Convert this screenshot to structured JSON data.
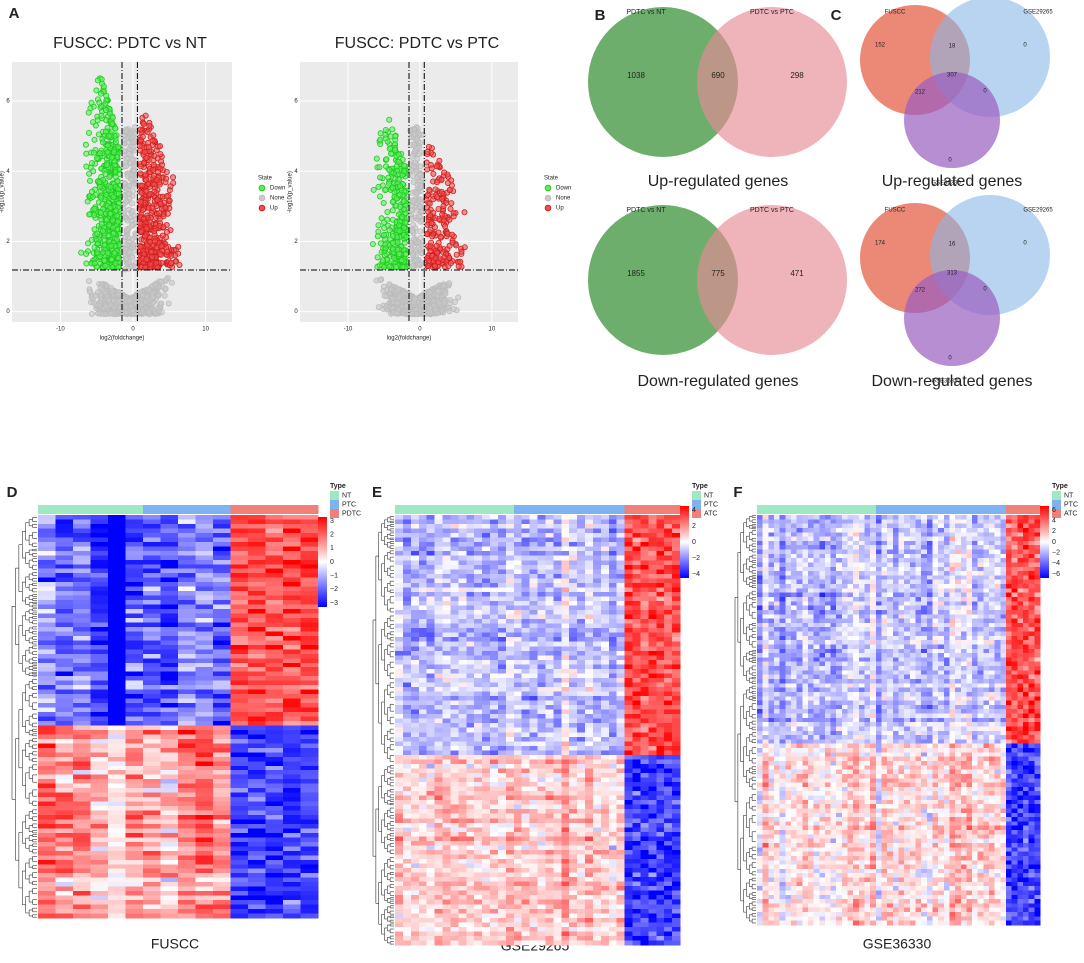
{
  "panels": {
    "A": {
      "letter": "A",
      "plots": [
        {
          "title": "FUSCC: PDTC vs NT",
          "x_label": "log2(foldchange)",
          "y_label": "-log10(p_value)",
          "x_ticks": [
            "-10",
            "0",
            "10"
          ],
          "y_ticks": [
            "0",
            "2",
            "4",
            "6"
          ],
          "legend_title": "State",
          "legend": [
            "Down",
            "None",
            "Up"
          ]
        },
        {
          "title": "FUSCC: PDTC vs PTC",
          "x_label": "log2(foldchange)",
          "y_label": "-log10(p_value)",
          "x_ticks": [
            "-10",
            "0",
            "10"
          ],
          "y_ticks": [
            "0",
            "2",
            "4",
            "6"
          ],
          "legend_title": "State",
          "legend": [
            "Down",
            "None",
            "Up"
          ]
        }
      ]
    },
    "B": {
      "letter": "B",
      "venns": [
        {
          "sets": [
            "PDTC vs NT",
            "PDTC vs PTC"
          ],
          "counts": [
            "1038",
            "690",
            "298"
          ],
          "caption": "Up-regulated genes"
        },
        {
          "sets": [
            "PDTC vs NT",
            "PDTC vs PTC"
          ],
          "counts": [
            "1855",
            "775",
            "471"
          ],
          "caption": "Down-regulated genes"
        }
      ]
    },
    "C": {
      "letter": "C",
      "venns": [
        {
          "sets": [
            "FUSCC",
            "GSE29265",
            "GSE36330"
          ],
          "counts": [
            "152",
            "18",
            "0",
            "307",
            "212",
            "0",
            "0"
          ],
          "caption": "Up-regulated genes"
        },
        {
          "sets": [
            "FUSCC",
            "GSE29265",
            "GSE36330"
          ],
          "counts": [
            "174",
            "16",
            "0",
            "313",
            "272",
            "0",
            "0"
          ],
          "caption": "Down-regulated genes"
        }
      ]
    },
    "heatmaps": [
      {
        "letter": "D",
        "caption": "FUSCC",
        "legend_title": "Type",
        "groups": [
          "NT",
          "PTC",
          "PDTC"
        ],
        "scale_title": "",
        "scale_labels": [
          "3",
          "2",
          "1",
          "0",
          "−1",
          "−2",
          "−3"
        ]
      },
      {
        "letter": "E",
        "caption": "GSE29265",
        "legend_title": "Type",
        "groups": [
          "NT",
          "PTC",
          "ATC"
        ],
        "scale_labels": [
          "4",
          "2",
          "0",
          "−2",
          "−4"
        ]
      },
      {
        "letter": "F",
        "caption": "GSE36330",
        "legend_title": "Type",
        "groups": [
          "NT",
          "PTC",
          "ATC"
        ],
        "scale_labels": [
          "6",
          "4",
          "2",
          "0",
          "−2",
          "−4",
          "−6"
        ]
      }
    ]
  }
}
